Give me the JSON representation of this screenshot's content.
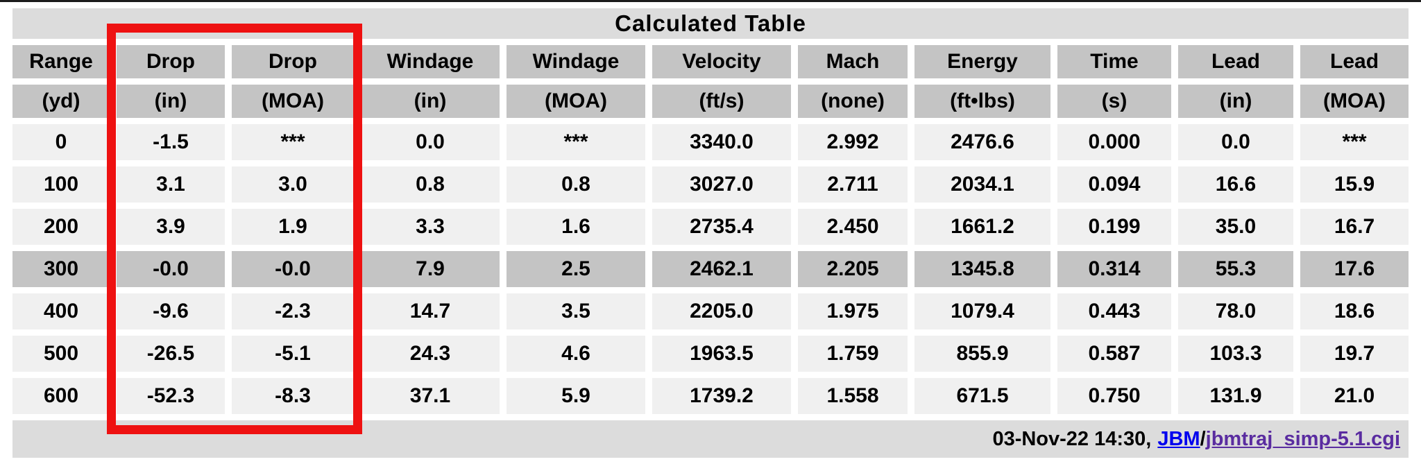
{
  "table": {
    "title": "Calculated Table",
    "columns": [
      {
        "name": "Range",
        "unit": "(yd)"
      },
      {
        "name": "Drop",
        "unit": "(in)"
      },
      {
        "name": "Drop",
        "unit": "(MOA)"
      },
      {
        "name": "Windage",
        "unit": "(in)"
      },
      {
        "name": "Windage",
        "unit": "(MOA)"
      },
      {
        "name": "Velocity",
        "unit": "(ft/s)"
      },
      {
        "name": "Mach",
        "unit": "(none)"
      },
      {
        "name": "Energy",
        "unit": "(ft•lbs)"
      },
      {
        "name": "Time",
        "unit": "(s)"
      },
      {
        "name": "Lead",
        "unit": "(in)"
      },
      {
        "name": "Lead",
        "unit": "(MOA)"
      }
    ],
    "rows": [
      {
        "highlight": false,
        "cells": [
          "0",
          "-1.5",
          "***",
          "0.0",
          "***",
          "3340.0",
          "2.992",
          "2476.6",
          "0.000",
          "0.0",
          "***"
        ]
      },
      {
        "highlight": false,
        "cells": [
          "100",
          "3.1",
          "3.0",
          "0.8",
          "0.8",
          "3027.0",
          "2.711",
          "2034.1",
          "0.094",
          "16.6",
          "15.9"
        ]
      },
      {
        "highlight": false,
        "cells": [
          "200",
          "3.9",
          "1.9",
          "3.3",
          "1.6",
          "2735.4",
          "2.450",
          "1661.2",
          "0.199",
          "35.0",
          "16.7"
        ]
      },
      {
        "highlight": true,
        "cells": [
          "300",
          "-0.0",
          "-0.0",
          "7.9",
          "2.5",
          "2462.1",
          "2.205",
          "1345.8",
          "0.314",
          "55.3",
          "17.6"
        ]
      },
      {
        "highlight": false,
        "cells": [
          "400",
          "-9.6",
          "-2.3",
          "14.7",
          "3.5",
          "2205.0",
          "1.975",
          "1079.4",
          "0.443",
          "78.0",
          "18.6"
        ]
      },
      {
        "highlight": false,
        "cells": [
          "500",
          "-26.5",
          "-5.1",
          "24.3",
          "4.6",
          "1963.5",
          "1.759",
          "855.9",
          "0.587",
          "103.3",
          "19.7"
        ]
      },
      {
        "highlight": false,
        "cells": [
          "600",
          "-52.3",
          "-8.3",
          "37.1",
          "5.9",
          "1739.2",
          "1.558",
          "671.5",
          "0.750",
          "131.9",
          "21.0"
        ]
      }
    ]
  },
  "footer": {
    "timestamp": "03-Nov-22 14:30,",
    "jbm_link": "JBM",
    "separator": "/",
    "script_link": "jbmtraj_simp-5.1.cgi"
  },
  "annotation": {
    "type": "red-rectangle",
    "highlights": "Drop (in) and Drop (MOA) columns",
    "color": "#ee1111"
  },
  "colors": {
    "title_band": "#dcdcdc",
    "header_cell": "#c4c4c4",
    "data_cell": "#f0f0f0",
    "highlight_row": "#c4c4c4",
    "footer_band": "#dcdcdc",
    "link_blue": "#0000ee",
    "link_visited_purple": "#5a2ca0",
    "top_line": "#1c1c1c"
  }
}
